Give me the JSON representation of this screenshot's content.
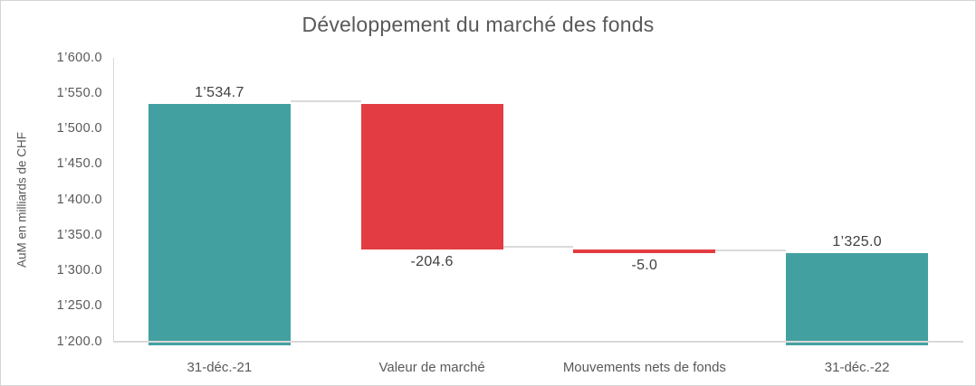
{
  "colors": {
    "total_bar": "#42A1A0",
    "negative_bar": "#E33C42",
    "axis_line": "#D9D9D9",
    "connector": "#DADADA",
    "title_text": "#595959",
    "tick_text": "#595959",
    "category_text": "#595959",
    "value_label_text": "#404040",
    "background": "#FFFFFF",
    "border": "#D5D5D5"
  },
  "chart_data": {
    "type": "bar",
    "subtype": "waterfall",
    "title": "Développement du marché des fonds",
    "ylabel": "AuM en milliards de CHF",
    "xlabel": "",
    "ylim": [
      1200,
      1600
    ],
    "ytick_step": 50,
    "ytick_labels": [
      "1’600.0",
      "1’550.0",
      "1’500.0",
      "1’450.0",
      "1’400.0",
      "1’350.0",
      "1’300.0",
      "1’250.0",
      "1’200.0"
    ],
    "grid": false,
    "legend": false,
    "categories": [
      "31-déc.-21",
      "Valeur de marché",
      "Mouvements nets de fonds",
      "31-déc.-22"
    ],
    "bars": [
      {
        "category": "31-déc.-21",
        "value": 1534.7,
        "display": "1’534.7",
        "role": "total",
        "start": 1200,
        "end": 1534.7,
        "label_position": "above"
      },
      {
        "category": "Valeur de marché",
        "value": -204.6,
        "display": "-204.6",
        "role": "negative",
        "start": 1534.7,
        "end": 1330.1,
        "label_position": "below"
      },
      {
        "category": "Mouvements nets de fonds",
        "value": -5.0,
        "display": "-5.0",
        "role": "negative",
        "start": 1330.1,
        "end": 1325.1,
        "label_position": "below"
      },
      {
        "category": "31-déc.-22",
        "value": 1325.0,
        "display": "1’325.0",
        "role": "total",
        "start": 1200,
        "end": 1325.0,
        "label_position": "above"
      }
    ]
  }
}
